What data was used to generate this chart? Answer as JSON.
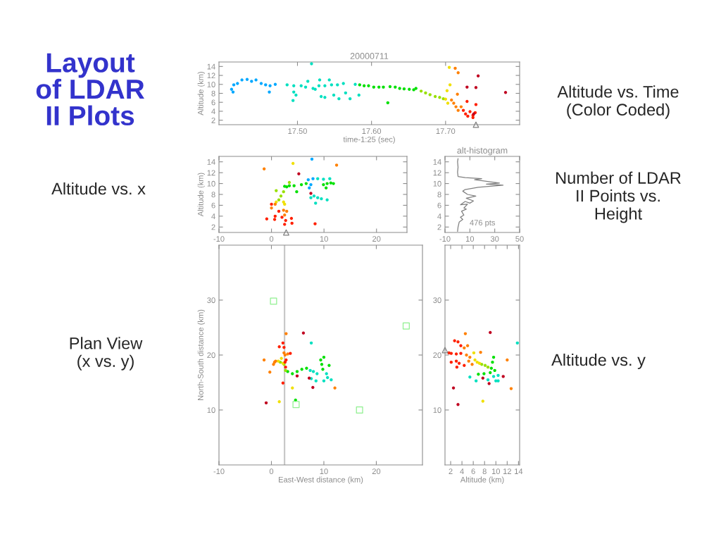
{
  "chart_data": [
    {
      "type": "other",
      "title": "Layout\nof LDAR\nII Plots"
    },
    {
      "type": "scatter",
      "title": "20000711",
      "xlabel": "time-1:25 (sec)",
      "ylabel": "Altitude (km)",
      "xlim": [
        17.394,
        17.8
      ],
      "ylim": [
        1,
        15
      ],
      "xticks": [
        {
          "value": 17.5,
          "label": "17.50"
        },
        {
          "value": 17.6,
          "label": "17.60"
        },
        {
          "value": 17.7,
          "label": "17.70"
        }
      ],
      "yticks": [
        2,
        4,
        6,
        8,
        10,
        12,
        14
      ],
      "annotations": [
        "Altitude vs. Time\n(Color Coded)"
      ],
      "series": [
        {
          "color": "#00a8ff",
          "marker": "circle",
          "x": [
            17.411,
            17.414,
            17.413,
            17.419,
            17.425,
            17.432,
            17.438,
            17.444,
            17.451,
            17.457,
            17.463,
            17.47,
            17.462
          ],
          "values": [
            8.9,
            9.9,
            8.3,
            10.2,
            11.0,
            11.1,
            10.7,
            11.0,
            10.2,
            9.9,
            9.7,
            10.0,
            8.3
          ]
        },
        {
          "color": "#00e0c0",
          "marker": "circle",
          "x": [
            17.486,
            17.495,
            17.494,
            17.495,
            17.498,
            17.505,
            17.511,
            17.514,
            17.519,
            17.521,
            17.524,
            17.529,
            17.53,
            17.532,
            17.537,
            17.537,
            17.543,
            17.546,
            17.549,
            17.554,
            17.556,
            17.562,
            17.565,
            17.571,
            17.578,
            17.583
          ],
          "values": [
            9.9,
            9.7,
            6.4,
            8.3,
            7.6,
            9.7,
            9.4,
            10.7,
            14.6,
            9.1,
            8.9,
            9.7,
            11.0,
            7.3,
            7.1,
            9.7,
            11.0,
            9.9,
            7.6,
            9.9,
            6.8,
            10.2,
            8.1,
            6.8,
            10.0,
            7.6
          ]
        },
        {
          "color": "#00e000",
          "marker": "circle",
          "x": [
            17.584,
            17.59,
            17.596,
            17.603,
            17.61,
            17.616,
            17.622,
            17.625,
            17.632,
            17.638,
            17.644,
            17.651,
            17.657,
            17.66
          ],
          "values": [
            9.9,
            9.7,
            9.7,
            9.4,
            9.4,
            9.4,
            5.9,
            9.5,
            9.4,
            9.1,
            9.0,
            8.9,
            8.8,
            9.1
          ]
        },
        {
          "color": "#98e000",
          "marker": "circle",
          "x": [
            17.667,
            17.673,
            17.679,
            17.686,
            17.692,
            17.697
          ],
          "values": [
            8.5,
            8.1,
            7.7,
            7.3,
            7.1,
            6.8
          ]
        },
        {
          "color": "#f0e000",
          "marker": "circle",
          "x": [
            17.7,
            17.703,
            17.705,
            17.706,
            17.702
          ],
          "values": [
            6.7,
            5.8,
            13.8,
            9.9,
            8.6
          ]
        },
        {
          "color": "#ff8000",
          "marker": "circle",
          "x": [
            17.708,
            17.711,
            17.713,
            17.717,
            17.714,
            17.717,
            17.721,
            17.716
          ],
          "values": [
            6.5,
            5.8,
            13.6,
            12.6,
            5.0,
            4.2,
            5.0,
            7.8
          ]
        },
        {
          "color": "#ff2000",
          "marker": "circle",
          "x": [
            17.724,
            17.727,
            17.73,
            17.733,
            17.737,
            17.74,
            17.741,
            17.729,
            17.737
          ],
          "values": [
            4.2,
            3.4,
            2.9,
            3.9,
            3.1,
            3.7,
            5.5,
            6.2,
            2.6
          ]
        },
        {
          "color": "#c00020",
          "marker": "circle",
          "x": [
            17.729,
            17.741,
            17.744,
            17.781,
            17.738
          ],
          "values": [
            9.4,
            9.3,
            11.9,
            8.2,
            3.4
          ]
        },
        {
          "color": "#808080",
          "marker": "triangle",
          "x": [
            17.741
          ],
          "values": [
            1
          ]
        }
      ]
    },
    {
      "type": "scatter",
      "ylabel": "Altitude (km)",
      "xlim": [
        -10,
        25.8
      ],
      "ylim": [
        1,
        15
      ],
      "xticks": [
        -10,
        0,
        10,
        20
      ],
      "yticks": [
        2,
        4,
        6,
        8,
        10,
        12,
        14
      ],
      "annotations": [
        "Altitude vs. x"
      ],
      "series": [
        {
          "color": "#00a8ff",
          "marker": "circle",
          "x": [
            7.0,
            7.2,
            7.5,
            7.9,
            7.7
          ],
          "values": [
            10.7,
            9.2,
            9.8,
            10.9,
            14.5
          ]
        },
        {
          "color": "#00e0c0",
          "marker": "circle",
          "x": [
            7.5,
            8.1,
            8.8,
            8.4,
            9.5,
            10.6,
            8.8,
            9.9,
            11.1
          ],
          "values": [
            7.4,
            7.7,
            7.4,
            6.4,
            7.2,
            7.0,
            10.9,
            10.8,
            10.9
          ]
        },
        {
          "color": "#00e000",
          "marker": "circle",
          "x": [
            9.9,
            10.6,
            11.3,
            11.8,
            10.4,
            4.8,
            3.4,
            4.3,
            5.7,
            6.6,
            2.5,
            2.9
          ],
          "values": [
            9.8,
            10.0,
            10.1,
            10.0,
            9.2,
            8.5,
            9.6,
            9.6,
            9.8,
            10.0,
            9.5,
            9.4
          ]
        },
        {
          "color": "#98e000",
          "marker": "circle",
          "x": [
            2.3,
            1.8,
            1.4,
            3.4,
            0.9
          ],
          "values": [
            8.5,
            7.7,
            7.0,
            10.2,
            8.7
          ]
        },
        {
          "color": "#f0e000",
          "marker": "circle",
          "x": [
            0.9,
            2.3,
            4.1,
            2.5
          ],
          "values": [
            6.6,
            6.6,
            13.7,
            6.2
          ]
        },
        {
          "color": "#ff8000",
          "marker": "circle",
          "x": [
            0.7,
            2.3,
            2.9,
            2.5,
            -1.4,
            12.4,
            0.0
          ],
          "values": [
            6.2,
            5.1,
            4.9,
            4.2,
            12.7,
            13.4,
            5.5
          ]
        },
        {
          "color": "#ff2000",
          "marker": "circle",
          "x": [
            0.7,
            0.6,
            1.4,
            2.0,
            2.7,
            2.5,
            3.8,
            3.9,
            -0.9,
            0.0,
            8.3
          ],
          "values": [
            4.0,
            3.4,
            4.9,
            3.8,
            3.2,
            2.5,
            3.6,
            2.7,
            3.5,
            6.2,
            2.6
          ]
        },
        {
          "color": "#c00020",
          "marker": "circle",
          "x": [
            5.2,
            7.5
          ],
          "values": [
            11.8,
            8.2
          ]
        },
        {
          "color": "#808080",
          "marker": "triangle",
          "x": [
            2.8
          ],
          "values": [
            1
          ]
        }
      ]
    },
    {
      "type": "line",
      "title": "alt-histogram",
      "xlim": [
        -10,
        50
      ],
      "ylim": [
        1,
        15
      ],
      "xticks": [
        -10,
        10,
        30,
        50
      ],
      "yticks": [
        2,
        4,
        6,
        8,
        10,
        12,
        14
      ],
      "annotations": [
        "476 pts",
        "Number of LDAR\nII Points vs.\nHeight"
      ],
      "series": [
        {
          "color": "#808080",
          "x": [
            0.1,
            0.5,
            1.4,
            4.3,
            2.4,
            5.2,
            3.3,
            7.1,
            5.2,
            8.1,
            2.4,
            6.2,
            10.0,
            12.9,
            7.1,
            14.8,
            8.1,
            4.3,
            6.2,
            16.7,
            36.7,
            23.3,
            33.8,
            13.8,
            19.5,
            6.2,
            0.5,
            0.1,
            0.5,
            0.1,
            0.5
          ],
          "values": [
            1.2,
            2.0,
            2.9,
            3.4,
            3.8,
            4.2,
            4.9,
            5.3,
            5.5,
            6.2,
            6.1,
            6.7,
            6.4,
            6.8,
            7.3,
            7.7,
            8.0,
            8.6,
            8.9,
            9.3,
            9.7,
            9.9,
            10.1,
            10.7,
            10.9,
            11.1,
            11.3,
            12.1,
            13.0,
            14.0,
            14.6
          ]
        }
      ]
    },
    {
      "type": "scatter",
      "xlabel": "East-West distance (km)",
      "ylabel": "North-South distance (km)",
      "xlim": [
        -10,
        28.8
      ],
      "ylim": [
        0,
        40
      ],
      "xticks": [
        -10,
        0,
        10,
        20
      ],
      "yticks": [
        10,
        20,
        30
      ],
      "annotations": [
        "Plan View\n(x vs. y)"
      ],
      "ref_lines": [
        {
          "axis": "x",
          "value": 2.5,
          "color": "#c8c8c8"
        }
      ],
      "series": [
        {
          "color": "#00e0c0",
          "marker": "circle",
          "x": [
            7.4,
            8.0,
            7.6,
            8.7,
            10.0,
            10.7,
            11.4,
            10.5,
            7.6,
            8.5
          ],
          "values": [
            17.2,
            17.0,
            15.7,
            16.6,
            15.3,
            15.9,
            15.5,
            16.6,
            22.2,
            15.3
          ]
        },
        {
          "color": "#00e000",
          "marker": "circle",
          "x": [
            3.1,
            4.0,
            4.9,
            5.8,
            6.7,
            9.4,
            9.6,
            9.8,
            10.0,
            11.0,
            4.6
          ],
          "values": [
            17.0,
            16.6,
            17.0,
            17.4,
            17.6,
            19.1,
            18.3,
            17.4,
            19.6,
            18.1,
            11.8
          ]
        },
        {
          "color": "#98e000",
          "marker": "circle",
          "x": [
            1.7,
            2.4,
            2.7
          ],
          "values": [
            18.7,
            18.3,
            17.2
          ]
        },
        {
          "color": "#f0e000",
          "marker": "circle",
          "x": [
            1.3,
            1.9,
            2.2,
            1.5,
            4.0
          ],
          "values": [
            18.9,
            19.4,
            18.5,
            11.5,
            14.0
          ]
        },
        {
          "color": "#ff8000",
          "marker": "circle",
          "x": [
            0.4,
            0.6,
            0.8,
            2.4,
            2.6,
            3.1,
            -1.4,
            -0.3,
            2.8,
            12.1
          ],
          "values": [
            18.3,
            18.7,
            18.9,
            20.4,
            20.0,
            20.2,
            19.1,
            16.9,
            23.9,
            14.0
          ]
        },
        {
          "color": "#ff2000",
          "marker": "circle",
          "x": [
            2.2,
            2.4,
            1.5,
            2.6,
            2.8,
            2.7,
            2.2,
            3.6
          ],
          "values": [
            22.2,
            21.4,
            21.5,
            18.7,
            19.1,
            17.8,
            14.9,
            20.3
          ]
        },
        {
          "color": "#c00020",
          "marker": "circle",
          "x": [
            6.1,
            -1.0,
            7.9,
            4.9,
            7.2
          ],
          "values": [
            24.0,
            11.3,
            14.1,
            16.2,
            15.8
          ]
        },
        {
          "color": "#90f090",
          "marker": "square",
          "x": [
            0.4,
            25.7,
            4.7,
            16.8
          ],
          "values": [
            29.8,
            25.3,
            11.0,
            10.0
          ]
        }
      ]
    },
    {
      "type": "scatter",
      "xlabel": "Altitude (km)",
      "xlim": [
        1,
        14.2
      ],
      "ylim": [
        0,
        40
      ],
      "xticks": [
        2,
        4,
        6,
        8,
        10,
        12,
        14
      ],
      "yticks": [
        10,
        20,
        30
      ],
      "annotations": [
        "Altitude vs. y"
      ],
      "series": [
        {
          "color": "#00e0c0",
          "marker": "circle",
          "x": [
            9.6,
            10.0,
            10.4,
            8.6,
            6.5,
            13.8,
            5.4,
            10.4
          ],
          "values": [
            16.1,
            15.3,
            16.3,
            15.5,
            15.3,
            22.2,
            16.0,
            15.3
          ]
        },
        {
          "color": "#00e000",
          "marker": "circle",
          "x": [
            9.2,
            9.4,
            9.6,
            9.0,
            6.9,
            7.9,
            9.8
          ],
          "values": [
            17.6,
            18.7,
            19.6,
            16.8,
            16.5,
            16.6,
            17.2
          ]
        },
        {
          "color": "#98e000",
          "marker": "circle",
          "x": [
            7.5,
            8.1,
            8.6
          ],
          "values": [
            18.3,
            18.1,
            17.8
          ]
        },
        {
          "color": "#f0e000",
          "marker": "circle",
          "x": [
            6.3,
            6.7,
            7.1,
            6.1,
            7.7
          ],
          "values": [
            19.1,
            18.7,
            18.5,
            20.4,
            11.6
          ]
        },
        {
          "color": "#ff8000",
          "marker": "circle",
          "x": [
            4.4,
            5.0,
            4.6,
            4.8,
            5.4,
            5.2,
            5.8,
            12.0,
            12.7,
            7.3
          ],
          "values": [
            21.3,
            21.7,
            23.9,
            20.0,
            19.6,
            18.9,
            18.3,
            19.1,
            13.9,
            20.5
          ]
        },
        {
          "color": "#ff2000",
          "marker": "circle",
          "x": [
            1.7,
            2.1,
            3.0,
            3.8,
            2.7,
            3.3,
            3.8,
            2.1,
            3.0,
            3.5,
            3.1,
            4.4
          ],
          "values": [
            20.4,
            20.3,
            20.2,
            20.3,
            22.6,
            22.4,
            21.7,
            18.7,
            18.9,
            18.5,
            17.8,
            18.1
          ]
        },
        {
          "color": "#c00020",
          "marker": "circle",
          "x": [
            2.5,
            3.3,
            9.0,
            8.8,
            11.3,
            7.7
          ],
          "values": [
            14.0,
            11.0,
            24.1,
            14.8,
            16.1,
            15.8
          ]
        },
        {
          "color": "#808080",
          "marker": "triangle",
          "x": [
            1.0
          ],
          "values": [
            20.9
          ]
        }
      ]
    }
  ]
}
